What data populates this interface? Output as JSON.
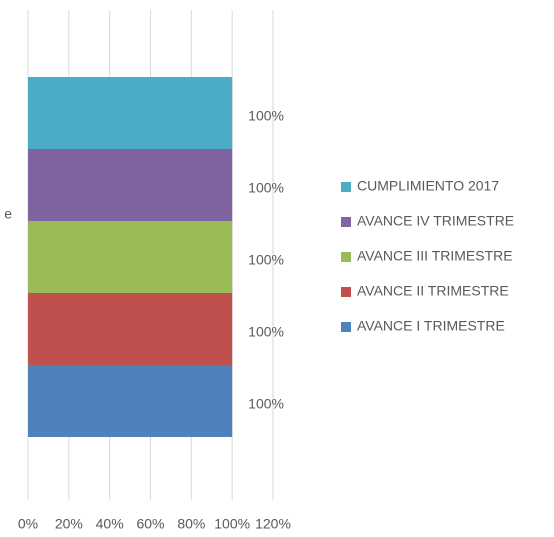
{
  "chart_data": {
    "type": "hbar",
    "categories": [
      "e"
    ],
    "series": [
      {
        "name": "AVANCE I TRIMESTRE",
        "color": "#4f81bd",
        "values": [
          100
        ],
        "value_labels": [
          "100%"
        ]
      },
      {
        "name": "AVANCE II TRIMESTRE",
        "color": "#c0504d",
        "values": [
          100
        ],
        "value_labels": [
          "100%"
        ]
      },
      {
        "name": "AVANCE III TRIMESTRE",
        "color": "#9bbb59",
        "values": [
          100
        ],
        "value_labels": [
          "100%"
        ]
      },
      {
        "name": "AVANCE IV TRIMESTRE",
        "color": "#8064a2",
        "values": [
          100
        ],
        "value_labels": [
          "100%"
        ]
      },
      {
        "name": "CUMPLIMIENTO 2017",
        "color": "#4bacc6",
        "values": [
          100
        ],
        "value_labels": [
          "100%"
        ]
      }
    ],
    "xlim": [
      0,
      120
    ],
    "xticks": [
      {
        "value": 0,
        "label": "0%"
      },
      {
        "value": 20,
        "label": "20%"
      },
      {
        "value": 40,
        "label": "40%"
      },
      {
        "value": 60,
        "label": "60%"
      },
      {
        "value": 80,
        "label": "80%"
      },
      {
        "value": 100,
        "label": "100%"
      },
      {
        "value": 120,
        "label": "120%"
      }
    ],
    "grid": true,
    "legend": "right"
  }
}
